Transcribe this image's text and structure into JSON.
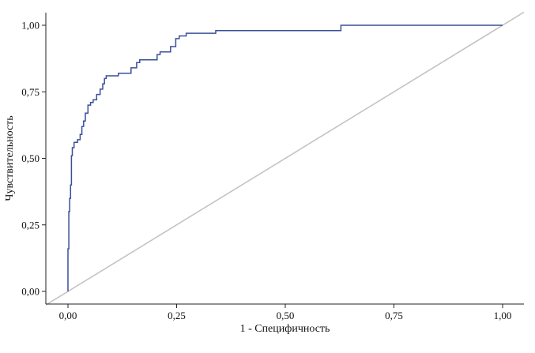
{
  "chart_data": {
    "type": "line",
    "title": "",
    "xlabel": "1 - Специфичность",
    "ylabel": "Чувствительность",
    "xlim": [
      0,
      1
    ],
    "ylim": [
      0,
      1
    ],
    "grid": false,
    "x_ticks": [
      {
        "value": 0.0,
        "label": "0,00"
      },
      {
        "value": 0.25,
        "label": "0,25"
      },
      {
        "value": 0.5,
        "label": "0,50"
      },
      {
        "value": 0.75,
        "label": "0,75"
      },
      {
        "value": 1.0,
        "label": "1,00"
      }
    ],
    "y_ticks": [
      {
        "value": 0.0,
        "label": "0,00"
      },
      {
        "value": 0.25,
        "label": "0,25"
      },
      {
        "value": 0.5,
        "label": "0,50"
      },
      {
        "value": 0.75,
        "label": "0,75"
      },
      {
        "value": 1.0,
        "label": "1,00"
      }
    ],
    "colors": {
      "roc": "#3a4f9a",
      "diagonal": "#c4c4c4",
      "axis": "#222222"
    },
    "series": [
      {
        "values": [
          [
            0.0,
            0.0
          ],
          [
            0.0,
            0.16
          ],
          [
            0.002,
            0.16
          ],
          [
            0.002,
            0.3
          ],
          [
            0.004,
            0.3
          ],
          [
            0.004,
            0.35
          ],
          [
            0.006,
            0.35
          ],
          [
            0.006,
            0.4
          ],
          [
            0.008,
            0.4
          ],
          [
            0.008,
            0.51
          ],
          [
            0.01,
            0.51
          ],
          [
            0.01,
            0.54
          ],
          [
            0.014,
            0.54
          ],
          [
            0.014,
            0.56
          ],
          [
            0.022,
            0.56
          ],
          [
            0.022,
            0.57
          ],
          [
            0.028,
            0.57
          ],
          [
            0.028,
            0.59
          ],
          [
            0.032,
            0.59
          ],
          [
            0.032,
            0.62
          ],
          [
            0.036,
            0.62
          ],
          [
            0.036,
            0.64
          ],
          [
            0.04,
            0.64
          ],
          [
            0.04,
            0.67
          ],
          [
            0.046,
            0.67
          ],
          [
            0.046,
            0.7
          ],
          [
            0.052,
            0.7
          ],
          [
            0.052,
            0.71
          ],
          [
            0.058,
            0.71
          ],
          [
            0.058,
            0.72
          ],
          [
            0.066,
            0.72
          ],
          [
            0.066,
            0.74
          ],
          [
            0.074,
            0.74
          ],
          [
            0.074,
            0.76
          ],
          [
            0.08,
            0.76
          ],
          [
            0.08,
            0.78
          ],
          [
            0.084,
            0.78
          ],
          [
            0.084,
            0.8
          ],
          [
            0.088,
            0.8
          ],
          [
            0.088,
            0.81
          ],
          [
            0.116,
            0.81
          ],
          [
            0.116,
            0.82
          ],
          [
            0.145,
            0.82
          ],
          [
            0.145,
            0.84
          ],
          [
            0.158,
            0.84
          ],
          [
            0.158,
            0.86
          ],
          [
            0.165,
            0.86
          ],
          [
            0.165,
            0.87
          ],
          [
            0.205,
            0.87
          ],
          [
            0.205,
            0.89
          ],
          [
            0.212,
            0.89
          ],
          [
            0.212,
            0.9
          ],
          [
            0.236,
            0.9
          ],
          [
            0.236,
            0.92
          ],
          [
            0.248,
            0.92
          ],
          [
            0.248,
            0.95
          ],
          [
            0.256,
            0.95
          ],
          [
            0.256,
            0.96
          ],
          [
            0.272,
            0.96
          ],
          [
            0.272,
            0.97
          ],
          [
            0.34,
            0.97
          ],
          [
            0.34,
            0.98
          ],
          [
            0.628,
            0.98
          ],
          [
            0.628,
            1.0
          ],
          [
            1.0,
            1.0
          ]
        ]
      }
    ]
  }
}
